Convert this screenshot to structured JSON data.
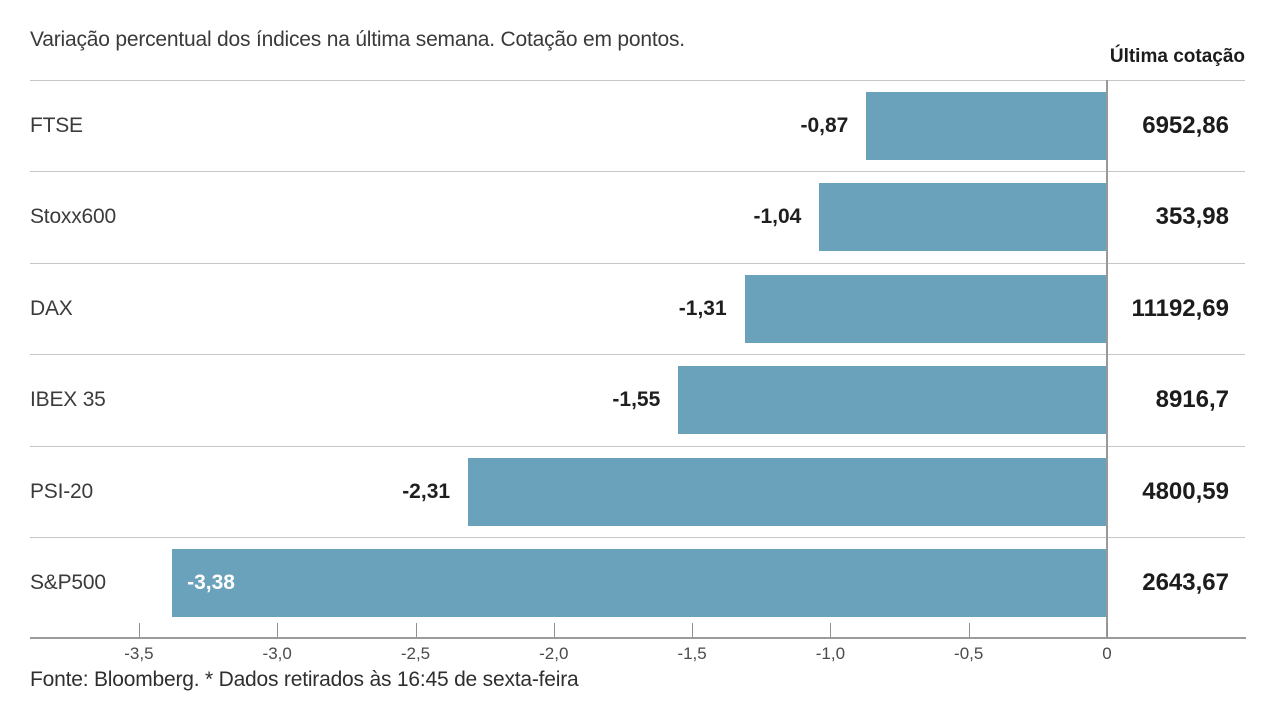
{
  "title": "Variação percentual dos índices na última semana. Cotação em pontos.",
  "column_header": "Última cotação",
  "footer": "Fonte: Bloomberg.  * Dados retirados às 16:45 de sexta-feira",
  "colors": {
    "bar": "#6aa2bb",
    "separator": "#c6c6c6",
    "axis_line": "#9b9b9b",
    "zero_line": "#999999",
    "title_text": "#3a3a3a",
    "value_text": "#1f1f1f",
    "inside_value_text": "#ffffff",
    "tick_text": "#4a4a4a"
  },
  "chart_data": {
    "type": "bar",
    "orientation": "horizontal",
    "title": "Variação percentual dos índices na última semana. Cotação em pontos.",
    "categories": [
      "FTSE",
      "Stoxx600",
      "DAX",
      "IBEX 35",
      "PSI-20",
      "S&P500"
    ],
    "series": [
      {
        "name": "Variação percentual na última semana",
        "values": [
          -0.87,
          -1.04,
          -1.31,
          -1.55,
          -2.31,
          -3.38
        ],
        "labels": [
          "-0,87",
          "-1,04",
          "-1,31",
          "-1,55",
          "-2,31",
          "-3,38"
        ]
      }
    ],
    "last_quotes": {
      "header": "Última cotação",
      "values": [
        "6952,86",
        "353,98",
        "11192,69",
        "8916,7",
        "4800,59",
        "2643,67"
      ]
    },
    "x_axis": {
      "min": -3.9,
      "max": 0,
      "ticks": [
        -3.5,
        -3.0,
        -2.5,
        -2.0,
        -1.5,
        -1.0,
        -0.5,
        0
      ],
      "tick_labels": [
        "-3,5",
        "-3,0",
        "-2,5",
        "-2,0",
        "-1,5",
        "-1,0",
        "-0,5",
        "0"
      ]
    },
    "grid": "row-separators",
    "legend": "none",
    "source": "Fonte: Bloomberg.  * Dados retirados às 16:45 de sexta-feira"
  }
}
